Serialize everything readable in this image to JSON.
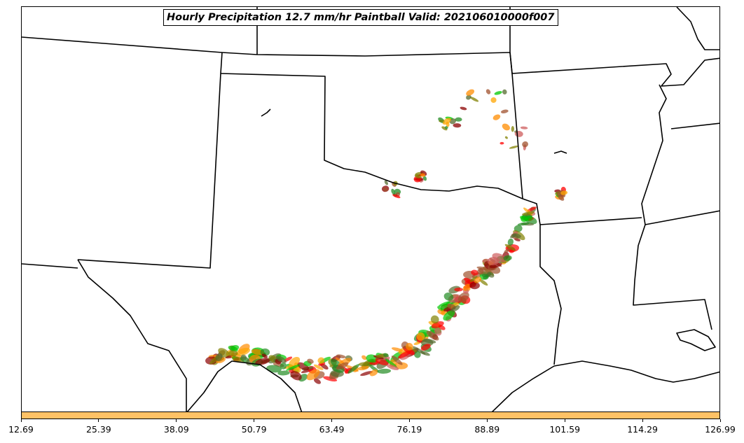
{
  "title": "Hourly Precipitation 12.7 mm/hr Paintball Valid: 202106010000f007",
  "colors": {
    "member_palette": [
      "#00c800",
      "#ff0000",
      "#ff8c00",
      "#8b0000",
      "#556b2f",
      "#a0522d",
      "#ffa500",
      "#228b22",
      "#cd5c5c",
      "#808000"
    ],
    "colorbar_fill": "#ffc266",
    "boundary": "#000000"
  },
  "colorbar": {
    "ticks": [
      "12.69",
      "25.39",
      "38.09",
      "50.79",
      "63.49",
      "76.19",
      "88.89",
      "101.59",
      "114.29",
      "126.99"
    ]
  },
  "map": {
    "region": "South Central United States",
    "layers": [
      "state-boundaries",
      "coastline",
      "precipitation-paintball"
    ]
  }
}
